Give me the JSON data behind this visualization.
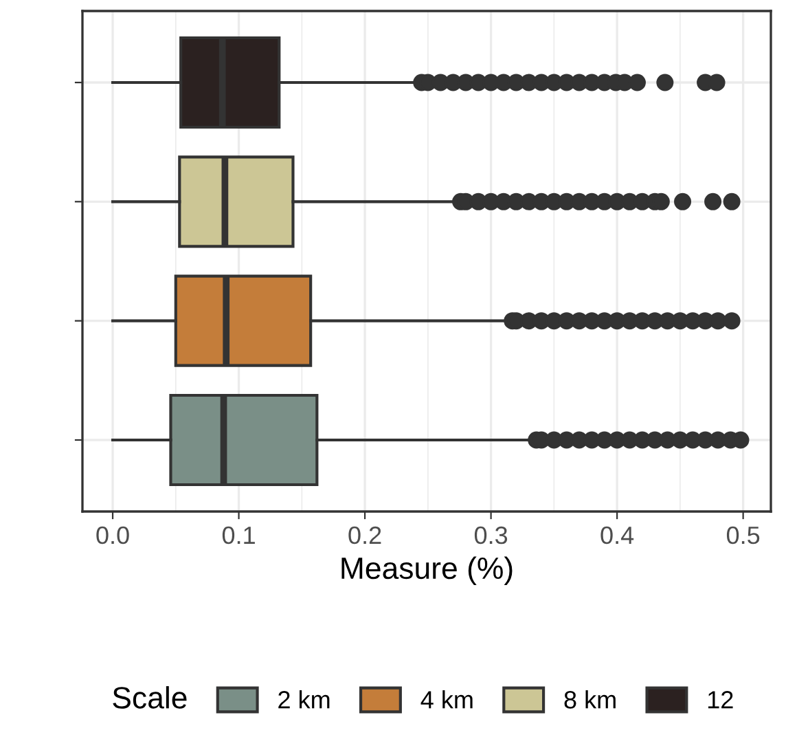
{
  "chart_data": {
    "type": "box",
    "orientation": "horizontal",
    "xlabel": "Measure (%)",
    "legend_title": "Scale",
    "legend": "bottom",
    "grid": true,
    "categories": [
      null,
      null,
      null,
      null
    ],
    "xlim": [
      -0.024,
      0.522
    ],
    "xticks": [
      {
        "value": 0,
        "label": "0.0"
      },
      0.1,
      0.2,
      0.3,
      0.4,
      0.5
    ],
    "series": [
      {
        "name": "2 km",
        "color": "#7a8f87",
        "boxes": [
          null,
          null,
          null,
          {
            "low": 0.0,
            "q1": 0.046,
            "median": 0.088,
            "q3": 0.162,
            "high": 0.333,
            "outliers": [
              0.336,
              0.34,
              0.35,
              0.36,
              0.37,
              0.38,
              0.39,
              0.4,
              0.41,
              0.42,
              0.43,
              0.44,
              0.45,
              0.46,
              0.47,
              0.48,
              0.49,
              0.498
            ]
          }
        ]
      },
      {
        "name": "4 km",
        "color": "#c47d3a",
        "boxes": [
          null,
          null,
          {
            "low": 0.0,
            "q1": 0.05,
            "median": 0.09,
            "q3": 0.157,
            "high": 0.314,
            "outliers": [
              0.317,
              0.32,
              0.33,
              0.34,
              0.35,
              0.36,
              0.37,
              0.38,
              0.39,
              0.4,
              0.41,
              0.42,
              0.43,
              0.44,
              0.45,
              0.46,
              0.47,
              0.48,
              0.491
            ]
          },
          null
        ]
      },
      {
        "name": "8 km",
        "color": "#ccc695",
        "boxes": [
          null,
          {
            "low": 0.0,
            "q1": 0.053,
            "median": 0.089,
            "q3": 0.143,
            "high": 0.274,
            "outliers": [
              0.276,
              0.28,
              0.29,
              0.3,
              0.31,
              0.32,
              0.33,
              0.34,
              0.35,
              0.36,
              0.37,
              0.38,
              0.39,
              0.4,
              0.41,
              0.42,
              0.43,
              0.435,
              0.452,
              0.476,
              0.491
            ]
          },
          null,
          null
        ]
      },
      {
        "name": "12",
        "color": "#2b2120",
        "boxes": [
          {
            "low": 0.0,
            "q1": 0.054,
            "median": 0.087,
            "q3": 0.132,
            "high": 0.243,
            "outliers": [
              0.245,
              0.25,
              0.26,
              0.27,
              0.28,
              0.29,
              0.3,
              0.31,
              0.32,
              0.33,
              0.34,
              0.35,
              0.36,
              0.37,
              0.38,
              0.39,
              0.399,
              0.406,
              0.416,
              0.438,
              0.47,
              0.479
            ]
          },
          null,
          null,
          null
        ]
      }
    ]
  }
}
